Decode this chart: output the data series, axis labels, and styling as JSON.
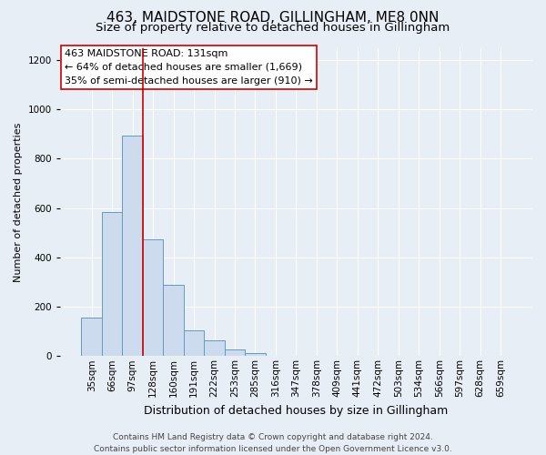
{
  "title": "463, MAIDSTONE ROAD, GILLINGHAM, ME8 0NN",
  "subtitle": "Size of property relative to detached houses in Gillingham",
  "xlabel": "Distribution of detached houses by size in Gillingham",
  "ylabel": "Number of detached properties",
  "bar_labels": [
    "35sqm",
    "66sqm",
    "97sqm",
    "128sqm",
    "160sqm",
    "191sqm",
    "222sqm",
    "253sqm",
    "285sqm",
    "316sqm",
    "347sqm",
    "378sqm",
    "409sqm",
    "441sqm",
    "472sqm",
    "503sqm",
    "534sqm",
    "566sqm",
    "597sqm",
    "628sqm",
    "659sqm"
  ],
  "bar_values": [
    155,
    583,
    893,
    472,
    290,
    105,
    65,
    28,
    12,
    0,
    0,
    0,
    0,
    0,
    0,
    0,
    0,
    0,
    0,
    0,
    0
  ],
  "bar_color": "#ccdcee",
  "bar_edge_color": "#6699bb",
  "vline_idx": 3,
  "vline_color": "#cc0000",
  "annotation_title": "463 MAIDSTONE ROAD: 131sqm",
  "annotation_line1": "← 64% of detached houses are smaller (1,669)",
  "annotation_line2": "35% of semi-detached houses are larger (910) →",
  "annotation_box_facecolor": "#ffffff",
  "annotation_box_edgecolor": "#cc0000",
  "ylim": [
    0,
    1250
  ],
  "yticks": [
    0,
    200,
    400,
    600,
    800,
    1000,
    1200
  ],
  "background_color": "#e8eef5",
  "grid_color": "#ffffff",
  "footer_line1": "Contains HM Land Registry data © Crown copyright and database right 2024.",
  "footer_line2": "Contains public sector information licensed under the Open Government Licence v3.0.",
  "title_fontsize": 11,
  "subtitle_fontsize": 9.5,
  "xlabel_fontsize": 9,
  "ylabel_fontsize": 8,
  "tick_fontsize": 7.5,
  "annotation_fontsize": 8,
  "footer_fontsize": 6.5
}
